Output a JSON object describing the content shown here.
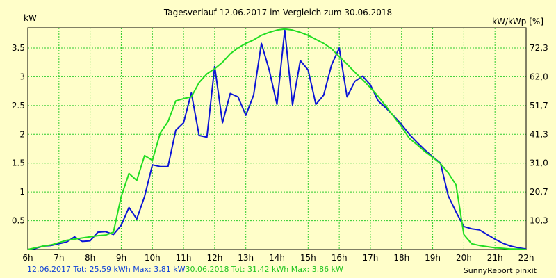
{
  "chart_data": {
    "type": "line",
    "title": "Tagesverlauf 12.06.2017 im Vergleich zum 30.06.2018",
    "ylabel_left": "kW",
    "ylabel_right": "kW/kWp [%]",
    "xlim": [
      6,
      22
    ],
    "ylim": [
      0,
      3.85
    ],
    "x_ticks": [
      "6h",
      "7h",
      "8h",
      "9h",
      "10h",
      "11h",
      "12h",
      "13h",
      "14h",
      "15h",
      "16h",
      "17h",
      "18h",
      "19h",
      "20h",
      "21h",
      "22h"
    ],
    "y_ticks_left": [
      {
        "v": 0.5,
        "label": "0.5"
      },
      {
        "v": 1,
        "label": "1"
      },
      {
        "v": 1.5,
        "label": "1.5"
      },
      {
        "v": 2,
        "label": "2"
      },
      {
        "v": 2.5,
        "label": "2.5"
      },
      {
        "v": 3,
        "label": "3"
      },
      {
        "v": 3.5,
        "label": "3.5"
      }
    ],
    "y_ticks_right": [
      {
        "v": 0.5,
        "label": "10,3"
      },
      {
        "v": 1,
        "label": "20,7"
      },
      {
        "v": 1.5,
        "label": "31,0"
      },
      {
        "v": 2,
        "label": "41,3"
      },
      {
        "v": 2.5,
        "label": "51,7"
      },
      {
        "v": 3,
        "label": "62,0"
      },
      {
        "v": 3.5,
        "label": "72,3"
      }
    ],
    "grid": true,
    "series": [
      {
        "name": "12.06.2017",
        "color": "#0b14d6",
        "points": [
          [
            6,
            0
          ],
          [
            6.25,
            0.02
          ],
          [
            6.5,
            0.06
          ],
          [
            6.75,
            0.07
          ],
          [
            7,
            0.1
          ],
          [
            7.25,
            0.13
          ],
          [
            7.5,
            0.22
          ],
          [
            7.75,
            0.14
          ],
          [
            8,
            0.15
          ],
          [
            8.25,
            0.3
          ],
          [
            8.5,
            0.31
          ],
          [
            8.75,
            0.26
          ],
          [
            9,
            0.42
          ],
          [
            9.25,
            0.73
          ],
          [
            9.5,
            0.53
          ],
          [
            9.75,
            0.92
          ],
          [
            10,
            1.47
          ],
          [
            10.25,
            1.44
          ],
          [
            10.5,
            1.44
          ],
          [
            10.75,
            2.07
          ],
          [
            11,
            2.2
          ],
          [
            11.25,
            2.72
          ],
          [
            11.5,
            1.98
          ],
          [
            11.75,
            1.95
          ],
          [
            12,
            3.18
          ],
          [
            12.25,
            2.2
          ],
          [
            12.5,
            2.71
          ],
          [
            12.75,
            2.65
          ],
          [
            13,
            2.33
          ],
          [
            13.25,
            2.68
          ],
          [
            13.5,
            3.58
          ],
          [
            13.75,
            3.12
          ],
          [
            14,
            2.52
          ],
          [
            14.25,
            3.81
          ],
          [
            14.5,
            2.51
          ],
          [
            14.75,
            3.28
          ],
          [
            15,
            3.12
          ],
          [
            15.25,
            2.52
          ],
          [
            15.5,
            2.68
          ],
          [
            15.75,
            3.2
          ],
          [
            16,
            3.5
          ],
          [
            16.25,
            2.65
          ],
          [
            16.5,
            2.92
          ],
          [
            16.75,
            3.01
          ],
          [
            17,
            2.86
          ],
          [
            17.25,
            2.58
          ],
          [
            17.5,
            2.46
          ],
          [
            17.75,
            2.32
          ],
          [
            18,
            2.17
          ],
          [
            18.25,
            2.0
          ],
          [
            18.5,
            1.86
          ],
          [
            18.75,
            1.73
          ],
          [
            19,
            1.61
          ],
          [
            19.25,
            1.5
          ],
          [
            19.5,
            0.93
          ],
          [
            19.75,
            0.65
          ],
          [
            20,
            0.4
          ],
          [
            20.25,
            0.36
          ],
          [
            20.5,
            0.34
          ],
          [
            20.75,
            0.26
          ],
          [
            21,
            0.18
          ],
          [
            21.25,
            0.11
          ],
          [
            21.5,
            0.06
          ],
          [
            21.75,
            0.03
          ],
          [
            22,
            0.01
          ]
        ]
      },
      {
        "name": "30.06.2018",
        "color": "#22dd22",
        "points": [
          [
            6,
            0
          ],
          [
            6.25,
            0.03
          ],
          [
            6.5,
            0.06
          ],
          [
            6.75,
            0.08
          ],
          [
            7,
            0.12
          ],
          [
            7.25,
            0.16
          ],
          [
            7.5,
            0.18
          ],
          [
            7.75,
            0.2
          ],
          [
            8,
            0.22
          ],
          [
            8.25,
            0.24
          ],
          [
            8.5,
            0.25
          ],
          [
            8.75,
            0.3
          ],
          [
            9,
            0.92
          ],
          [
            9.25,
            1.32
          ],
          [
            9.5,
            1.2
          ],
          [
            9.75,
            1.63
          ],
          [
            10,
            1.55
          ],
          [
            10.25,
            2.02
          ],
          [
            10.5,
            2.22
          ],
          [
            10.75,
            2.58
          ],
          [
            11,
            2.62
          ],
          [
            11.25,
            2.65
          ],
          [
            11.5,
            2.9
          ],
          [
            11.75,
            3.05
          ],
          [
            12,
            3.14
          ],
          [
            12.25,
            3.25
          ],
          [
            12.5,
            3.4
          ],
          [
            12.75,
            3.5
          ],
          [
            13,
            3.58
          ],
          [
            13.25,
            3.64
          ],
          [
            13.5,
            3.72
          ],
          [
            13.75,
            3.77
          ],
          [
            14,
            3.81
          ],
          [
            14.25,
            3.83
          ],
          [
            14.5,
            3.81
          ],
          [
            14.75,
            3.77
          ],
          [
            15,
            3.72
          ],
          [
            15.25,
            3.65
          ],
          [
            15.5,
            3.58
          ],
          [
            15.75,
            3.49
          ],
          [
            16,
            3.35
          ],
          [
            16.25,
            3.22
          ],
          [
            16.5,
            3.08
          ],
          [
            16.75,
            2.95
          ],
          [
            17,
            2.81
          ],
          [
            17.25,
            2.66
          ],
          [
            17.5,
            2.49
          ],
          [
            17.75,
            2.31
          ],
          [
            18,
            2.13
          ],
          [
            18.25,
            1.93
          ],
          [
            18.5,
            1.82
          ],
          [
            18.75,
            1.7
          ],
          [
            19,
            1.6
          ],
          [
            19.25,
            1.49
          ],
          [
            19.5,
            1.33
          ],
          [
            19.75,
            1.12
          ],
          [
            20,
            0.26
          ],
          [
            20.25,
            0.1
          ],
          [
            20.5,
            0.07
          ],
          [
            20.75,
            0.05
          ],
          [
            21,
            0.03
          ],
          [
            21.25,
            0.02
          ],
          [
            21.5,
            0.01
          ],
          [
            21.75,
            0.01
          ],
          [
            22,
            0
          ]
        ]
      }
    ]
  },
  "footer": {
    "series1_text": "12.06.2017 Tot: 25,59 kWh Max: 3,81 kW",
    "series2_text": "30.06.2018 Tot: 31,42 kWh Max: 3,86 kW",
    "credit": "SunnyReport pinxit"
  },
  "colors": {
    "background": "#fffec9",
    "grid": "#2dcc2d",
    "axes": "#000000"
  }
}
